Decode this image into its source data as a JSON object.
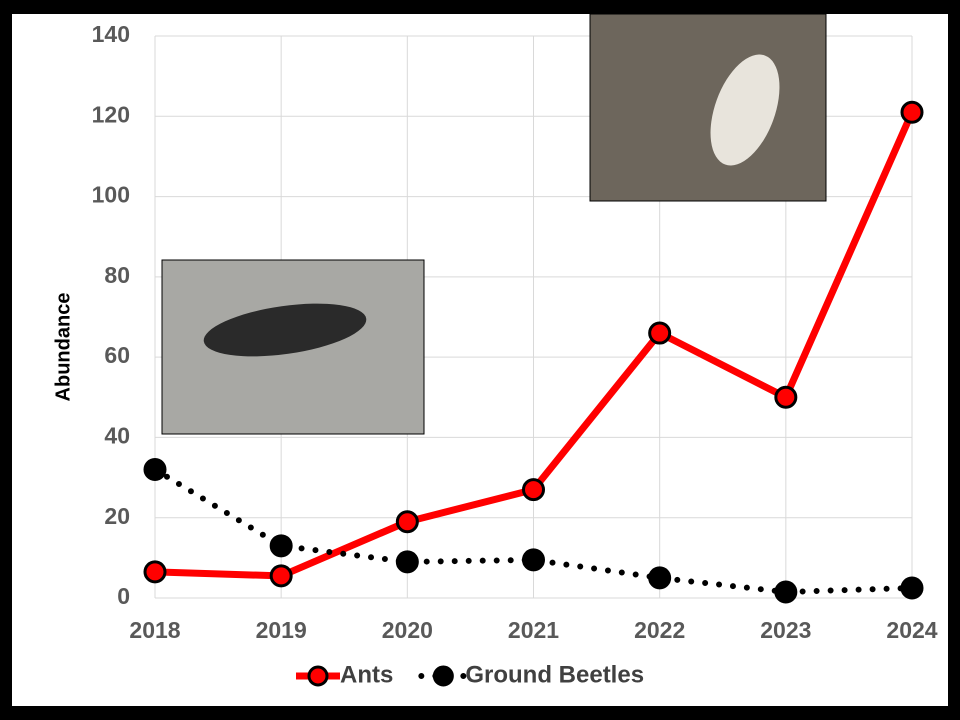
{
  "chart_data": {
    "type": "line",
    "y_label": "Abundance",
    "categories": [
      "2018",
      "2019",
      "2020",
      "2021",
      "2022",
      "2023",
      "2024"
    ],
    "series": [
      {
        "name": "Ants",
        "color": "#ff0000",
        "line": "solid",
        "values": [
          6.5,
          5.5,
          19,
          27,
          66,
          50,
          121
        ]
      },
      {
        "name": "Ground Beetles",
        "color": "#000000",
        "line": "dotted",
        "values": [
          32,
          13,
          9,
          9.5,
          5,
          1.5,
          2.5
        ]
      }
    ],
    "ylim": [
      0,
      140
    ],
    "yticks": [
      0,
      20,
      40,
      60,
      80,
      100,
      120,
      140
    ],
    "grid": true
  }
}
